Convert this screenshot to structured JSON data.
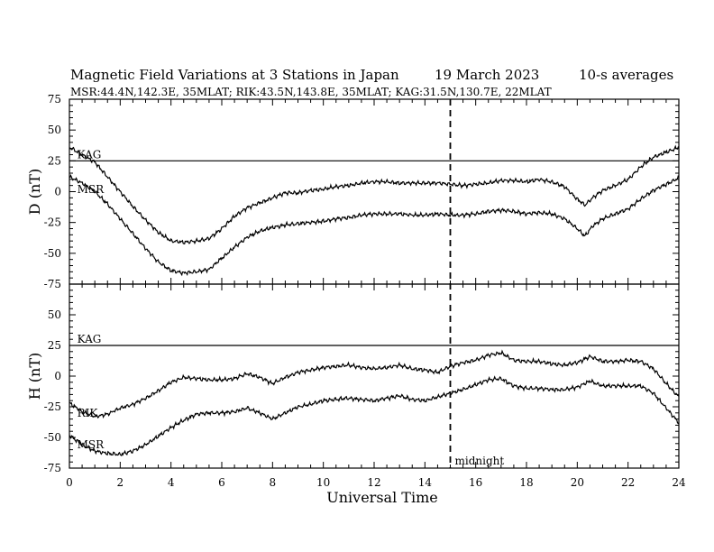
{
  "header": {
    "title": "Magnetic Field Variations at 3 Stations in Japan",
    "date": "19 March   2023",
    "averaging": "10-s averages",
    "stations_line": "MSR:44.4N,142.3E, 35MLAT;  RIK:43.5N,143.8E, 35MLAT;  KAG:31.5N,130.7E, 22MLAT"
  },
  "chart_data": {
    "type": "line",
    "xlabel": "Universal Time",
    "xlim": [
      0,
      24
    ],
    "x_ticks": [
      0,
      2,
      4,
      6,
      8,
      10,
      12,
      14,
      16,
      18,
      20,
      22,
      24
    ],
    "x_tick_labels": [
      "0",
      "2",
      "4",
      "6",
      "8",
      "10",
      "12",
      "14",
      "16",
      "18",
      "20",
      "22",
      "24"
    ],
    "x_minor_step": 0.5,
    "annotation": {
      "x": 15,
      "label": "midnight",
      "style": "dashed"
    },
    "grid": false,
    "panels": [
      {
        "id": "D",
        "ylabel": "D (nT)",
        "ylim": [
          -75,
          75
        ],
        "y_ticks": [
          -75,
          -50,
          -25,
          0,
          25,
          50,
          75
        ],
        "y_tick_labels": [
          "-75",
          "-50",
          "-25",
          "0",
          "25",
          "50",
          "75"
        ],
        "series": [
          {
            "name": "KAG",
            "label_at": [
              0.2,
              30
            ],
            "x": [
              0,
              24
            ],
            "y": [
              25,
              25
            ]
          },
          {
            "name": "RIK",
            "x": [
              0,
              0.5,
              1,
              1.5,
              2,
              2.5,
              3,
              3.5,
              4,
              4.5,
              5,
              5.5,
              6,
              6.5,
              7,
              7.5,
              8,
              8.5,
              9,
              9.5,
              10,
              10.5,
              11,
              11.5,
              12,
              12.5,
              13,
              13.5,
              14,
              14.5,
              15,
              15.5,
              16,
              16.5,
              17,
              17.5,
              18,
              18.5,
              19,
              19.5,
              20,
              20.3,
              20.6,
              21,
              21.5,
              22,
              22.5,
              23,
              23.5,
              24
            ],
            "y": [
              36,
              30,
              24,
              12,
              0,
              -12,
              -23,
              -33,
              -40,
              -41,
              -40,
              -38,
              -30,
              -20,
              -13,
              -9,
              -5,
              -1,
              -1,
              1,
              2,
              4,
              5,
              7,
              8,
              8,
              7,
              7,
              7,
              7,
              6,
              5,
              6,
              7,
              9,
              9,
              8,
              10,
              8,
              4,
              -6,
              -11,
              -5,
              1,
              5,
              10,
              20,
              28,
              32,
              36
            ]
          },
          {
            "name": "MSR",
            "label_at": [
              0.2,
              2
            ],
            "x": [
              0,
              0.5,
              1,
              1.5,
              2,
              2.5,
              3,
              3.5,
              4,
              4.5,
              5,
              5.5,
              6,
              6.5,
              7,
              7.5,
              8,
              8.5,
              9,
              9.5,
              10,
              10.5,
              11,
              11.5,
              12,
              12.5,
              13,
              13.5,
              14,
              14.5,
              15,
              15.5,
              16,
              16.5,
              17,
              17.5,
              18,
              18.5,
              19,
              19.5,
              20,
              20.3,
              20.6,
              21,
              21.5,
              22,
              22.5,
              23,
              23.5,
              24
            ],
            "y": [
              12,
              7,
              0,
              -10,
              -22,
              -34,
              -46,
              -57,
              -64,
              -66,
              -65,
              -63,
              -54,
              -45,
              -37,
              -32,
              -29,
              -27,
              -26,
              -25,
              -24,
              -22,
              -21,
              -19,
              -18,
              -18,
              -18,
              -19,
              -19,
              -18,
              -19,
              -19,
              -18,
              -16,
              -15,
              -16,
              -18,
              -17,
              -18,
              -22,
              -30,
              -36,
              -28,
              -22,
              -18,
              -14,
              -6,
              1,
              6,
              11
            ]
          }
        ]
      },
      {
        "id": "H",
        "ylabel": "H (nT)",
        "ylim": [
          -75,
          75
        ],
        "y_ticks": [
          -75,
          -50,
          -25,
          0,
          25,
          50,
          75
        ],
        "y_tick_labels": [
          "-75",
          "-50",
          "-25",
          "0",
          "25",
          "50",
          "75"
        ],
        "series": [
          {
            "name": "KAG",
            "label_at": [
              0.2,
              30
            ],
            "x": [
              0,
              24
            ],
            "y": [
              25,
              25
            ]
          },
          {
            "name": "RIK",
            "label_at": [
              0.2,
              -30
            ],
            "x": [
              0,
              0.5,
              1,
              1.5,
              2,
              2.5,
              3,
              3.5,
              4,
              4.5,
              5,
              5.5,
              6,
              6.5,
              7,
              7.5,
              8,
              8.5,
              9,
              9.5,
              10,
              10.5,
              11,
              11.5,
              12,
              12.5,
              13,
              13.5,
              14,
              14.5,
              15,
              15.5,
              16,
              16.5,
              17,
              17.5,
              18,
              18.5,
              19,
              19.5,
              20,
              20.5,
              21,
              21.5,
              22,
              22.5,
              23,
              23.5,
              24
            ],
            "y": [
              -22,
              -29,
              -33,
              -31,
              -26,
              -23,
              -18,
              -12,
              -5,
              -1,
              -2,
              -3,
              -3,
              -2,
              2,
              -1,
              -6,
              -1,
              3,
              5,
              7,
              8,
              9,
              7,
              6,
              7,
              9,
              6,
              5,
              3,
              8,
              11,
              13,
              17,
              19,
              13,
              12,
              12,
              10,
              9,
              11,
              16,
              12,
              12,
              13,
              12,
              6,
              -6,
              -17
            ]
          },
          {
            "name": "MSR",
            "label_at": [
              0.2,
              -56
            ],
            "x": [
              0,
              0.5,
              1,
              1.5,
              2,
              2.5,
              3,
              3.5,
              4,
              4.5,
              5,
              5.5,
              6,
              6.5,
              7,
              7.5,
              8,
              8.5,
              9,
              9.5,
              10,
              10.5,
              11,
              11.5,
              12,
              12.5,
              13,
              13.5,
              14,
              14.5,
              15,
              15.5,
              16,
              16.5,
              17,
              17.5,
              18,
              18.5,
              19,
              19.5,
              20,
              20.5,
              21,
              21.5,
              22,
              22.5,
              23,
              23.5,
              24
            ],
            "y": [
              -48,
              -56,
              -61,
              -63,
              -64,
              -61,
              -56,
              -49,
              -42,
              -36,
              -31,
              -30,
              -30,
              -29,
              -26,
              -30,
              -35,
              -30,
              -25,
              -23,
              -20,
              -19,
              -18,
              -19,
              -20,
              -18,
              -16,
              -19,
              -20,
              -17,
              -14,
              -11,
              -7,
              -3,
              -2,
              -8,
              -10,
              -10,
              -11,
              -11,
              -9,
              -4,
              -8,
              -8,
              -8,
              -8,
              -14,
              -26,
              -38
            ]
          }
        ]
      }
    ]
  }
}
